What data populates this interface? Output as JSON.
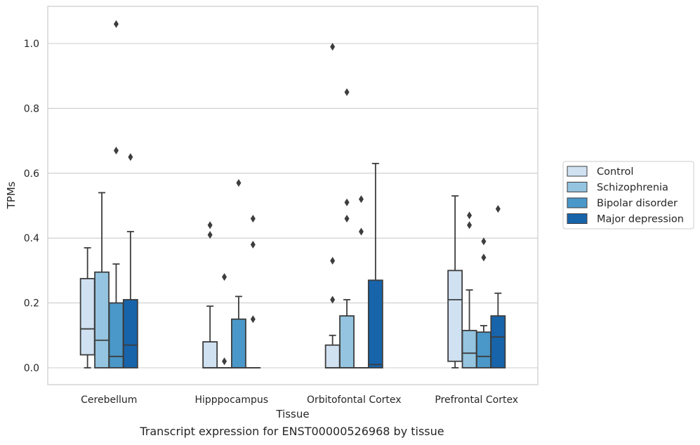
{
  "chart_data": {
    "type": "box",
    "xlabel": "Tissue",
    "ylabel": "TPMs",
    "caption": "Transcript expression for ENST00000526968 by tissue",
    "ylim": [
      -0.05,
      1.12
    ],
    "yticks": [
      "0.0",
      "0.2",
      "0.4",
      "0.6",
      "0.8",
      "1.0"
    ],
    "categories": [
      "Cerebellum",
      "Hipppocampus",
      "Orbitofontal Cortex",
      "Prefrontal Cortex"
    ],
    "grid": "horizontal",
    "legend_position": "right",
    "series": [
      {
        "name": "Control",
        "color": "#d0e1f2",
        "boxes": [
          {
            "q1": 0.04,
            "median": 0.12,
            "q3": 0.275,
            "whisker_low": 0.0,
            "whisker_high": 0.37,
            "outliers": []
          },
          {
            "q1": 0.0,
            "median": 0.0,
            "q3": 0.08,
            "whisker_low": 0.0,
            "whisker_high": 0.19,
            "outliers": [
              0.41,
              0.44
            ]
          },
          {
            "q1": 0.0,
            "median": 0.0,
            "q3": 0.07,
            "whisker_low": 0.0,
            "whisker_high": 0.1,
            "outliers": [
              0.21,
              0.33,
              0.99
            ]
          },
          {
            "q1": 0.02,
            "median": 0.21,
            "q3": 0.3,
            "whisker_low": 0.0,
            "whisker_high": 0.53,
            "outliers": []
          }
        ]
      },
      {
        "name": "Schizophrenia",
        "color": "#94c4df",
        "boxes": [
          {
            "q1": 0.0,
            "median": 0.085,
            "q3": 0.295,
            "whisker_low": 0.0,
            "whisker_high": 0.54,
            "outliers": []
          },
          {
            "q1": 0.0,
            "median": 0.0,
            "q3": 0.0,
            "whisker_low": 0.0,
            "whisker_high": 0.0,
            "outliers": [
              0.02,
              0.28
            ]
          },
          {
            "q1": 0.0,
            "median": 0.0,
            "q3": 0.16,
            "whisker_low": 0.0,
            "whisker_high": 0.21,
            "outliers": [
              0.46,
              0.51,
              0.85
            ]
          },
          {
            "q1": 0.0,
            "median": 0.045,
            "q3": 0.115,
            "whisker_low": 0.0,
            "whisker_high": 0.24,
            "outliers": [
              0.44,
              0.47
            ]
          }
        ]
      },
      {
        "name": "Bipolar disorder",
        "color": "#4a98c9",
        "boxes": [
          {
            "q1": 0.0,
            "median": 0.035,
            "q3": 0.2,
            "whisker_low": 0.0,
            "whisker_high": 0.32,
            "outliers": [
              0.67,
              1.06
            ]
          },
          {
            "q1": 0.0,
            "median": 0.0,
            "q3": 0.15,
            "whisker_low": 0.0,
            "whisker_high": 0.22,
            "outliers": [
              0.57
            ]
          },
          {
            "q1": 0.0,
            "median": 0.0,
            "q3": 0.0,
            "whisker_low": 0.0,
            "whisker_high": 0.0,
            "outliers": [
              0.42,
              0.52
            ]
          },
          {
            "q1": 0.0,
            "median": 0.035,
            "q3": 0.11,
            "whisker_low": 0.0,
            "whisker_high": 0.13,
            "outliers": [
              0.34,
              0.39
            ]
          }
        ]
      },
      {
        "name": "Major depression",
        "color": "#1764ab",
        "boxes": [
          {
            "q1": 0.0,
            "median": 0.07,
            "q3": 0.21,
            "whisker_low": 0.0,
            "whisker_high": 0.42,
            "outliers": [
              0.65
            ]
          },
          {
            "q1": 0.0,
            "median": 0.0,
            "q3": 0.0,
            "whisker_low": 0.0,
            "whisker_high": 0.0,
            "outliers": [
              0.15,
              0.38,
              0.46
            ]
          },
          {
            "q1": 0.0,
            "median": 0.01,
            "q3": 0.27,
            "whisker_low": 0.0,
            "whisker_high": 0.63,
            "outliers": []
          },
          {
            "q1": 0.0,
            "median": 0.095,
            "q3": 0.16,
            "whisker_low": 0.0,
            "whisker_high": 0.23,
            "outliers": [
              0.49
            ]
          }
        ]
      }
    ]
  }
}
